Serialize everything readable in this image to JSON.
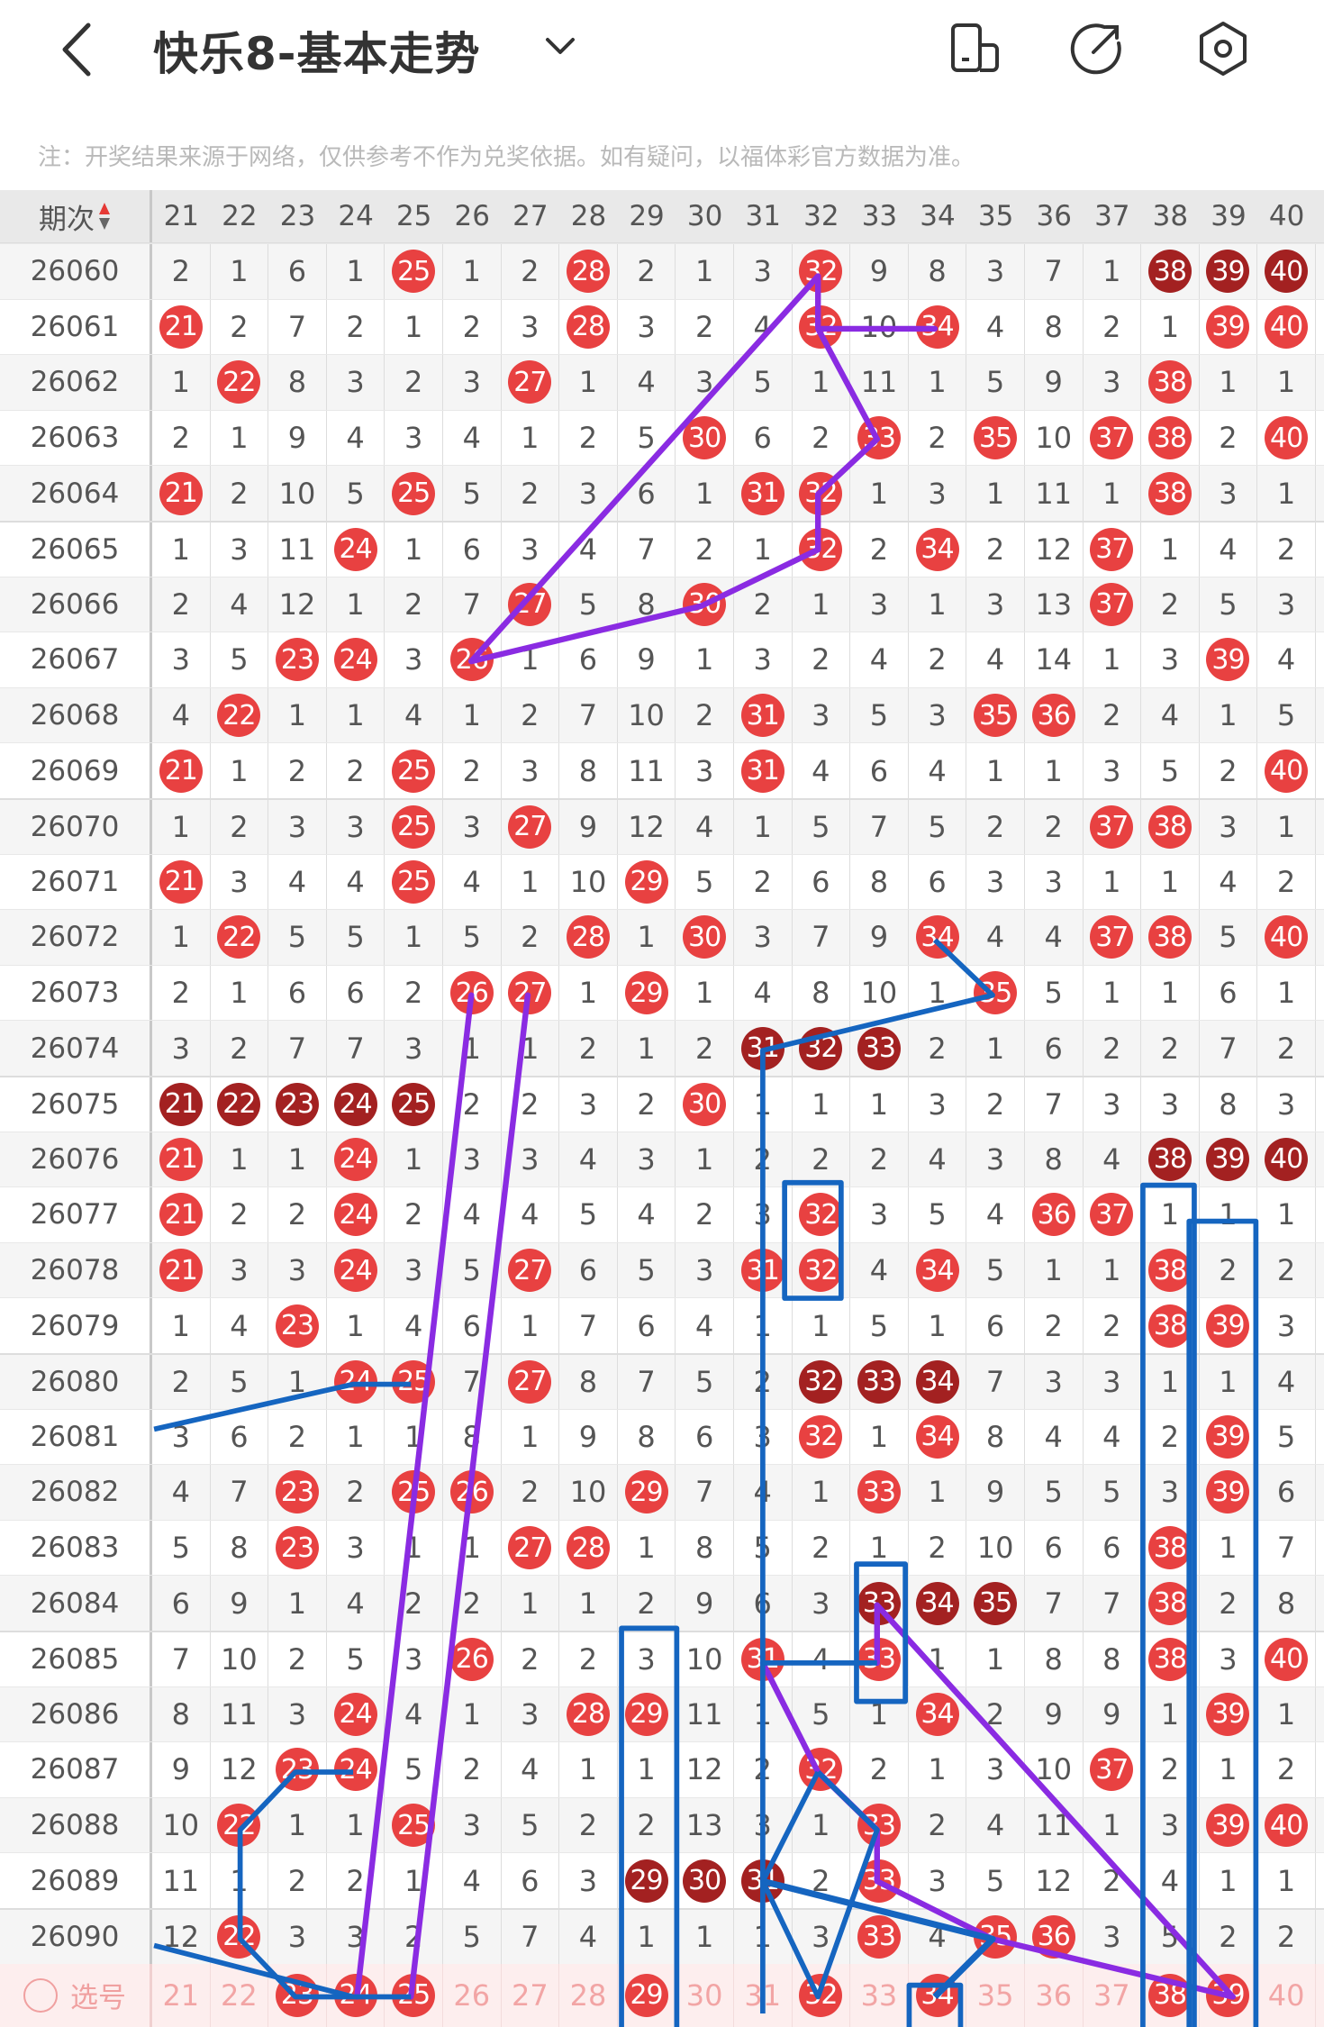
{
  "header": {
    "title": "快乐8-基本走势",
    "icons": [
      "back-chevron-icon",
      "chevron-down-icon",
      "layout-icon",
      "share-icon",
      "settings-icon"
    ]
  },
  "note": "注：开奖结果来源于网络，仅供参考不作为兑奖依据。如有疑问，以福体彩官方数据为准。",
  "table": {
    "period_header": "期次",
    "columns": [
      21,
      22,
      23,
      24,
      25,
      26,
      27,
      28,
      29,
      30,
      31,
      32,
      33,
      34,
      35,
      36,
      37,
      38,
      39,
      40
    ],
    "rows": [
      {
        "period": "26060",
        "cells": [
          2,
          1,
          6,
          1,
          25,
          1,
          2,
          28,
          2,
          1,
          3,
          32,
          9,
          8,
          3,
          7,
          1,
          38,
          39,
          40
        ],
        "dark": [
          38,
          39,
          40
        ]
      },
      {
        "period": "26061",
        "cells": [
          21,
          2,
          7,
          2,
          1,
          2,
          3,
          28,
          3,
          2,
          4,
          32,
          10,
          34,
          4,
          8,
          2,
          1,
          39,
          40
        ],
        "dark": []
      },
      {
        "period": "26062",
        "cells": [
          1,
          22,
          8,
          3,
          2,
          3,
          27,
          1,
          4,
          3,
          5,
          1,
          11,
          1,
          5,
          9,
          3,
          38,
          1,
          1
        ],
        "dark": []
      },
      {
        "period": "26063",
        "cells": [
          2,
          1,
          9,
          4,
          3,
          4,
          1,
          2,
          5,
          30,
          6,
          2,
          33,
          2,
          35,
          10,
          37,
          38,
          2,
          40
        ],
        "dark": []
      },
      {
        "period": "26064",
        "cells": [
          21,
          2,
          10,
          5,
          25,
          5,
          2,
          3,
          6,
          1,
          31,
          32,
          1,
          3,
          1,
          11,
          1,
          38,
          3,
          1
        ],
        "dark": []
      },
      {
        "period": "26065",
        "cells": [
          1,
          3,
          11,
          24,
          1,
          6,
          3,
          4,
          7,
          2,
          1,
          32,
          2,
          34,
          2,
          12,
          37,
          1,
          4,
          2
        ],
        "dark": []
      },
      {
        "period": "26066",
        "cells": [
          2,
          4,
          12,
          1,
          2,
          7,
          27,
          5,
          8,
          30,
          2,
          1,
          3,
          1,
          3,
          13,
          37,
          2,
          5,
          3
        ],
        "dark": []
      },
      {
        "period": "26067",
        "cells": [
          3,
          5,
          23,
          24,
          3,
          26,
          1,
          6,
          9,
          1,
          3,
          2,
          4,
          2,
          4,
          14,
          1,
          3,
          39,
          4
        ],
        "dark": []
      },
      {
        "period": "26068",
        "cells": [
          4,
          22,
          1,
          1,
          4,
          1,
          2,
          7,
          10,
          2,
          31,
          3,
          5,
          3,
          35,
          36,
          2,
          4,
          1,
          5
        ],
        "dark": []
      },
      {
        "period": "26069",
        "cells": [
          21,
          1,
          2,
          2,
          25,
          2,
          3,
          8,
          11,
          3,
          31,
          4,
          6,
          4,
          1,
          1,
          3,
          5,
          2,
          40
        ],
        "dark": []
      },
      {
        "period": "26070",
        "cells": [
          1,
          2,
          3,
          3,
          25,
          3,
          27,
          9,
          12,
          4,
          1,
          5,
          7,
          5,
          2,
          2,
          37,
          38,
          3,
          1
        ],
        "dark": []
      },
      {
        "period": "26071",
        "cells": [
          21,
          3,
          4,
          4,
          25,
          4,
          1,
          10,
          29,
          5,
          2,
          6,
          8,
          6,
          3,
          3,
          1,
          1,
          4,
          2
        ],
        "dark": []
      },
      {
        "period": "26072",
        "cells": [
          1,
          22,
          5,
          5,
          1,
          5,
          2,
          28,
          1,
          30,
          3,
          7,
          9,
          34,
          4,
          4,
          37,
          38,
          5,
          40
        ],
        "dark": []
      },
      {
        "period": "26073",
        "cells": [
          2,
          1,
          6,
          6,
          2,
          26,
          27,
          1,
          29,
          1,
          4,
          8,
          10,
          1,
          35,
          5,
          1,
          1,
          6,
          1
        ],
        "dark": []
      },
      {
        "period": "26074",
        "cells": [
          3,
          2,
          7,
          7,
          3,
          1,
          1,
          2,
          1,
          2,
          31,
          32,
          33,
          2,
          1,
          6,
          2,
          2,
          7,
          2
        ],
        "dark": [
          31,
          32,
          33
        ]
      },
      {
        "period": "26075",
        "cells": [
          21,
          22,
          23,
          24,
          25,
          2,
          2,
          3,
          2,
          30,
          1,
          1,
          1,
          3,
          2,
          7,
          3,
          3,
          8,
          3
        ],
        "dark": [
          21,
          22,
          23,
          24,
          25
        ]
      },
      {
        "period": "26076",
        "cells": [
          21,
          1,
          1,
          24,
          1,
          3,
          3,
          4,
          3,
          1,
          2,
          2,
          2,
          4,
          3,
          8,
          4,
          38,
          39,
          40
        ],
        "dark": [
          38,
          39,
          40
        ]
      },
      {
        "period": "26077",
        "cells": [
          21,
          2,
          2,
          24,
          2,
          4,
          4,
          5,
          4,
          2,
          3,
          32,
          3,
          5,
          4,
          36,
          37,
          1,
          1,
          1
        ],
        "dark": []
      },
      {
        "period": "26078",
        "cells": [
          21,
          3,
          3,
          24,
          3,
          5,
          27,
          6,
          5,
          3,
          31,
          32,
          4,
          34,
          5,
          1,
          1,
          38,
          2,
          2
        ],
        "dark": []
      },
      {
        "period": "26079",
        "cells": [
          1,
          4,
          23,
          1,
          4,
          6,
          1,
          7,
          6,
          4,
          1,
          1,
          5,
          1,
          6,
          2,
          2,
          38,
          39,
          3
        ],
        "dark": []
      },
      {
        "period": "26080",
        "cells": [
          2,
          5,
          1,
          24,
          25,
          7,
          27,
          8,
          7,
          5,
          2,
          32,
          33,
          34,
          7,
          3,
          3,
          1,
          1,
          4
        ],
        "dark": [
          32,
          33,
          34
        ]
      },
      {
        "period": "26081",
        "cells": [
          3,
          6,
          2,
          1,
          1,
          8,
          1,
          9,
          8,
          6,
          3,
          32,
          1,
          34,
          8,
          4,
          4,
          2,
          39,
          5
        ],
        "dark": []
      },
      {
        "period": "26082",
        "cells": [
          4,
          7,
          23,
          2,
          25,
          26,
          2,
          10,
          29,
          7,
          4,
          1,
          33,
          1,
          9,
          5,
          5,
          3,
          39,
          6
        ],
        "dark": []
      },
      {
        "period": "26083",
        "cells": [
          5,
          8,
          23,
          3,
          1,
          1,
          27,
          28,
          1,
          8,
          5,
          2,
          1,
          2,
          10,
          6,
          6,
          38,
          1,
          7
        ],
        "dark": []
      },
      {
        "period": "26084",
        "cells": [
          6,
          9,
          1,
          4,
          2,
          2,
          1,
          1,
          2,
          9,
          6,
          3,
          33,
          34,
          35,
          7,
          7,
          38,
          2,
          8
        ],
        "dark": [
          33,
          34,
          35
        ]
      },
      {
        "period": "26085",
        "cells": [
          7,
          10,
          2,
          5,
          3,
          26,
          2,
          2,
          3,
          10,
          31,
          4,
          33,
          1,
          1,
          8,
          8,
          38,
          3,
          40
        ],
        "dark": []
      },
      {
        "period": "26086",
        "cells": [
          8,
          11,
          3,
          24,
          4,
          1,
          3,
          28,
          29,
          11,
          1,
          5,
          1,
          34,
          2,
          9,
          9,
          1,
          39,
          1
        ],
        "dark": []
      },
      {
        "period": "26087",
        "cells": [
          9,
          12,
          23,
          24,
          5,
          2,
          4,
          1,
          1,
          12,
          2,
          32,
          2,
          1,
          3,
          10,
          37,
          2,
          1,
          2
        ],
        "dark": []
      },
      {
        "period": "26088",
        "cells": [
          10,
          22,
          1,
          1,
          25,
          3,
          5,
          2,
          2,
          13,
          3,
          1,
          33,
          2,
          4,
          11,
          1,
          3,
          39,
          40
        ],
        "dark": []
      },
      {
        "period": "26089",
        "cells": [
          11,
          1,
          2,
          2,
          1,
          4,
          6,
          3,
          29,
          30,
          31,
          2,
          33,
          3,
          5,
          12,
          2,
          4,
          1,
          1
        ],
        "dark": [
          29,
          30,
          31
        ]
      },
      {
        "period": "26090",
        "cells": [
          12,
          22,
          3,
          3,
          2,
          5,
          7,
          4,
          1,
          1,
          1,
          3,
          33,
          4,
          35,
          36,
          3,
          5,
          2,
          2
        ],
        "dark": []
      }
    ],
    "select_row": {
      "label": "选号",
      "selected": [
        23,
        24,
        25,
        29,
        32,
        34,
        38,
        39
      ]
    }
  },
  "colors": {
    "hit_ball": "#e84141",
    "streak_ball": "#a32121",
    "line_purple": "#8a2be2",
    "line_blue": "#1565c0",
    "stripe": "#f5f5f5"
  }
}
